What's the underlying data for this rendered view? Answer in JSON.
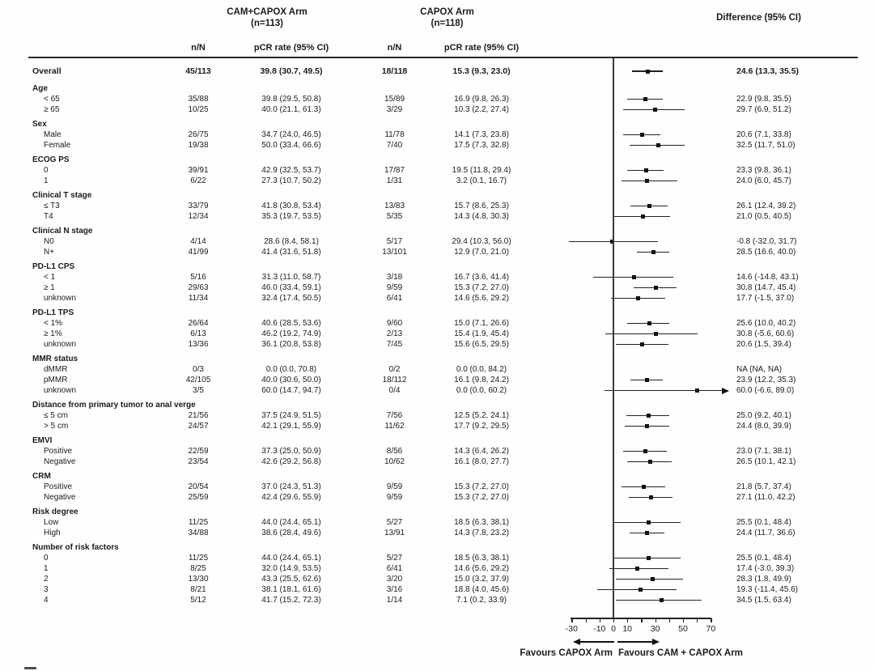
{
  "figure": {
    "arm1": {
      "name": "CAM+CAPOX Arm",
      "n_label": "(n=113)"
    },
    "arm2": {
      "name": "CAPOX Arm",
      "n_label": "(n=118)"
    },
    "col_nN": "n/N",
    "col_pcr": "pCR rate (95% CI)",
    "diff_header": "Difference (95% CI)",
    "favours_left": "Favours CAPOX Arm",
    "favours_right": "Favours CAM + CAPOX Arm"
  },
  "chart_data": {
    "type": "forest",
    "x_axis": {
      "range": [
        -30,
        70
      ],
      "tick_marks": [
        -30,
        -20,
        -10,
        0,
        10,
        20,
        30,
        40,
        50,
        60,
        70
      ],
      "labeled_ticks": [
        -30,
        -10,
        0,
        10,
        30,
        50,
        70
      ],
      "tick_labels": [
        "-30",
        "-10",
        "0",
        "10",
        "30",
        "50",
        "70"
      ],
      "zero_reference_line": 0
    },
    "rows": [
      {
        "kind": "overall",
        "label": "Overall",
        "n1": "45/113",
        "pcr1": "39.8 (30.7, 49.5)",
        "n2": "18/118",
        "pcr2": "15.3 (9.3, 23.0)",
        "diff": "24.6 (13.3, 35.5)",
        "est": 24.6,
        "lo": 13.3,
        "hi": 35.5
      },
      {
        "kind": "group",
        "label": "Age"
      },
      {
        "kind": "item",
        "label": "< 65",
        "n1": "35/88",
        "pcr1": "39.8 (29.5, 50.8)",
        "n2": "15/89",
        "pcr2": "16.9 (9.8, 26.3)",
        "diff": "22.9 (9.8, 35.5)",
        "est": 22.9,
        "lo": 9.8,
        "hi": 35.5
      },
      {
        "kind": "item",
        "label": "≥ 65",
        "n1": "10/25",
        "pcr1": "40.0 (21.1, 61.3)",
        "n2": "3/29",
        "pcr2": "10.3 (2.2, 27.4)",
        "diff": "29.7 (6.9, 51.2)",
        "est": 29.7,
        "lo": 6.9,
        "hi": 51.2
      },
      {
        "kind": "group",
        "label": "Sex"
      },
      {
        "kind": "item",
        "label": "Male",
        "n1": "26/75",
        "pcr1": "34.7 (24.0, 46.5)",
        "n2": "11/78",
        "pcr2": "14.1 (7.3, 23.8)",
        "diff": "20.6 (7.1, 33.8)",
        "est": 20.6,
        "lo": 7.1,
        "hi": 33.8
      },
      {
        "kind": "item",
        "label": "Female",
        "n1": "19/38",
        "pcr1": "50.0 (33.4, 66.6)",
        "n2": "7/40",
        "pcr2": "17.5 (7.3, 32.8)",
        "diff": "32.5 (11.7, 51.0)",
        "est": 32.5,
        "lo": 11.7,
        "hi": 51.0
      },
      {
        "kind": "group",
        "label": "ECOG PS"
      },
      {
        "kind": "item",
        "label": "0",
        "n1": "39/91",
        "pcr1": "42.9 (32.5, 53.7)",
        "n2": "17/87",
        "pcr2": "19.5 (11.8, 29.4)",
        "diff": "23.3 (9.8, 36.1)",
        "est": 23.3,
        "lo": 9.8,
        "hi": 36.1
      },
      {
        "kind": "item",
        "label": "1",
        "n1": "6/22",
        "pcr1": "27.3 (10.7, 50.2)",
        "n2": "1/31",
        "pcr2": "3.2 (0.1, 16.7)",
        "diff": "24.0 (6.0, 45.7)",
        "est": 24.0,
        "lo": 6.0,
        "hi": 45.7
      },
      {
        "kind": "group",
        "label": "Clinical T stage"
      },
      {
        "kind": "item",
        "label": "≤ T3",
        "n1": "33/79",
        "pcr1": "41.8 (30.8, 53.4)",
        "n2": "13/83",
        "pcr2": "15.7 (8.6, 25.3)",
        "diff": "26.1 (12.4, 39.2)",
        "est": 26.1,
        "lo": 12.4,
        "hi": 39.2
      },
      {
        "kind": "item",
        "label": "T4",
        "n1": "12/34",
        "pcr1": "35.3 (19.7, 53.5)",
        "n2": "5/35",
        "pcr2": "14.3 (4.8, 30.3)",
        "diff": "21.0 (0.5, 40.5)",
        "est": 21.0,
        "lo": 0.5,
        "hi": 40.5
      },
      {
        "kind": "group",
        "label": "Clinical N stage"
      },
      {
        "kind": "item",
        "label": "N0",
        "n1": "4/14",
        "pcr1": "28.6 (8.4, 58.1)",
        "n2": "5/17",
        "pcr2": "29.4 (10.3, 56.0)",
        "diff": "-0.8 (-32.0, 31.7)",
        "est": -0.8,
        "lo": -32.0,
        "hi": 31.7
      },
      {
        "kind": "item",
        "label": "N+",
        "n1": "41/99",
        "pcr1": "41.4 (31.6, 51.8)",
        "n2": "13/101",
        "pcr2": "12.9 (7.0, 21.0)",
        "diff": "28.5 (16.6, 40.0)",
        "est": 28.5,
        "lo": 16.6,
        "hi": 40.0
      },
      {
        "kind": "group",
        "label": "PD-L1 CPS"
      },
      {
        "kind": "item",
        "label": "< 1",
        "n1": "5/16",
        "pcr1": "31.3 (11.0, 58.7)",
        "n2": "3/18",
        "pcr2": "16.7 (3.6, 41.4)",
        "diff": "14.6 (-14.8, 43.1)",
        "est": 14.6,
        "lo": -14.8,
        "hi": 43.1
      },
      {
        "kind": "item",
        "label": "≥ 1",
        "n1": "29/63",
        "pcr1": "46.0 (33.4, 59.1)",
        "n2": "9/59",
        "pcr2": "15.3 (7.2, 27.0)",
        "diff": "30.8 (14.7, 45.4)",
        "est": 30.8,
        "lo": 14.7,
        "hi": 45.4
      },
      {
        "kind": "item",
        "label": "unknown",
        "n1": "11/34",
        "pcr1": "32.4 (17.4, 50.5)",
        "n2": "6/41",
        "pcr2": "14.6 (5.6, 29.2)",
        "diff": "17.7 (-1.5, 37.0)",
        "est": 17.7,
        "lo": -1.5,
        "hi": 37.0
      },
      {
        "kind": "group",
        "label": "PD-L1 TPS"
      },
      {
        "kind": "item",
        "label": "< 1%",
        "n1": "26/64",
        "pcr1": "40.6 (28.5, 53.6)",
        "n2": "9/60",
        "pcr2": "15.0 (7.1, 26.6)",
        "diff": "25.6 (10.0, 40.2)",
        "est": 25.6,
        "lo": 10.0,
        "hi": 40.2
      },
      {
        "kind": "item",
        "label": "≥ 1%",
        "n1": "6/13",
        "pcr1": "46.2 (19.2, 74.9)",
        "n2": "2/13",
        "pcr2": "15.4 (1.9, 45.4)",
        "diff": "30.8 (-5.6, 60.6)",
        "est": 30.8,
        "lo": -5.6,
        "hi": 60.6
      },
      {
        "kind": "item",
        "label": "unknown",
        "n1": "13/36",
        "pcr1": "36.1 (20.8, 53.8)",
        "n2": "7/45",
        "pcr2": "15.6 (6.5, 29.5)",
        "diff": "20.6 (1.5, 39.4)",
        "est": 20.6,
        "lo": 1.5,
        "hi": 39.4
      },
      {
        "kind": "group",
        "label": "MMR status"
      },
      {
        "kind": "item",
        "label": "dMMR",
        "n1": "0/3",
        "pcr1": "0.0 (0.0, 70.8)",
        "n2": "0/2",
        "pcr2": "0.0 (0.0, 84.2)",
        "diff": "NA (NA, NA)",
        "est": null,
        "lo": null,
        "hi": null
      },
      {
        "kind": "item",
        "label": "pMMR",
        "n1": "42/105",
        "pcr1": "40.0 (30.6, 50.0)",
        "n2": "18/112",
        "pcr2": "16.1 (9.8, 24.2)",
        "diff": "23.9 (12.2, 35.3)",
        "est": 23.9,
        "lo": 12.2,
        "hi": 35.3
      },
      {
        "kind": "item",
        "label": "unknown",
        "n1": "3/5",
        "pcr1": "60.0 (14.7, 94.7)",
        "n2": "0/4",
        "pcr2": "0.0 (0.0, 60.2)",
        "diff": "60.0 (-6.6, 89.0)",
        "est": 60.0,
        "lo": -6.6,
        "hi": 89.0,
        "clip_hi_arrow": true
      },
      {
        "kind": "group",
        "label": "Distance from primary tumor to anal verge"
      },
      {
        "kind": "item",
        "label": "≤ 5 cm",
        "n1": "21/56",
        "pcr1": "37.5 (24.9, 51.5)",
        "n2": "7/56",
        "pcr2": "12.5 (5.2, 24.1)",
        "diff": "25.0 (9.2, 40.1)",
        "est": 25.0,
        "lo": 9.2,
        "hi": 40.1
      },
      {
        "kind": "item",
        "label": "> 5 cm",
        "n1": "24/57",
        "pcr1": "42.1 (29.1, 55.9)",
        "n2": "11/62",
        "pcr2": "17.7 (9.2, 29.5)",
        "diff": "24.4 (8.0, 39.9)",
        "est": 24.4,
        "lo": 8.0,
        "hi": 39.9
      },
      {
        "kind": "group",
        "label": "EMVI"
      },
      {
        "kind": "item",
        "label": "Positive",
        "n1": "22/59",
        "pcr1": "37.3 (25.0, 50.9)",
        "n2": "8/56",
        "pcr2": "14.3 (6.4, 26.2)",
        "diff": "23.0 (7.1, 38.1)",
        "est": 23.0,
        "lo": 7.1,
        "hi": 38.1
      },
      {
        "kind": "item",
        "label": "Negative",
        "n1": "23/54",
        "pcr1": "42.6 (29.2, 56.8)",
        "n2": "10/62",
        "pcr2": "16.1 (8.0, 27.7)",
        "diff": "26.5 (10.1, 42.1)",
        "est": 26.5,
        "lo": 10.1,
        "hi": 42.1
      },
      {
        "kind": "group",
        "label": "CRM"
      },
      {
        "kind": "item",
        "label": "Positive",
        "n1": "20/54",
        "pcr1": "37.0 (24.3, 51.3)",
        "n2": "9/59",
        "pcr2": "15.3 (7.2, 27.0)",
        "diff": "21.8 (5.7, 37.4)",
        "est": 21.8,
        "lo": 5.7,
        "hi": 37.4
      },
      {
        "kind": "item",
        "label": "Negative",
        "n1": "25/59",
        "pcr1": "42.4 (29.6, 55.9)",
        "n2": "9/59",
        "pcr2": "15.3 (7.2, 27.0)",
        "diff": "27.1 (11.0, 42.2)",
        "est": 27.1,
        "lo": 11.0,
        "hi": 42.2
      },
      {
        "kind": "group",
        "label": "Risk degree"
      },
      {
        "kind": "item",
        "label": "Low",
        "n1": "11/25",
        "pcr1": "44.0 (24.4, 65.1)",
        "n2": "5/27",
        "pcr2": "18.5 (6.3, 38.1)",
        "diff": "25.5 (0.1, 48.4)",
        "est": 25.5,
        "lo": 0.1,
        "hi": 48.4
      },
      {
        "kind": "item",
        "label": "High",
        "n1": "34/88",
        "pcr1": "38.6 (28.4, 49.6)",
        "n2": "13/91",
        "pcr2": "14.3 (7.8, 23.2)",
        "diff": "24.4 (11.7, 36.6)",
        "est": 24.4,
        "lo": 11.7,
        "hi": 36.6
      },
      {
        "kind": "group",
        "label": "Number of risk factors"
      },
      {
        "kind": "item",
        "label": "0",
        "n1": "11/25",
        "pcr1": "44.0 (24.4, 65.1)",
        "n2": "5/27",
        "pcr2": "18.5 (6.3, 38.1)",
        "diff": "25.5 (0.1, 48.4)",
        "est": 25.5,
        "lo": 0.1,
        "hi": 48.4
      },
      {
        "kind": "item",
        "label": "1",
        "n1": "8/25",
        "pcr1": "32.0 (14.9, 53.5)",
        "n2": "6/41",
        "pcr2": "14.6 (5.6, 29.2)",
        "diff": "17.4 (-3.0, 39.3)",
        "est": 17.4,
        "lo": -3.0,
        "hi": 39.3
      },
      {
        "kind": "item",
        "label": "2",
        "n1": "13/30",
        "pcr1": "43.3 (25.5, 62.6)",
        "n2": "3/20",
        "pcr2": "15.0 (3.2, 37.9)",
        "diff": "28.3 (1.8, 49.9)",
        "est": 28.3,
        "lo": 1.8,
        "hi": 49.9
      },
      {
        "kind": "item",
        "label": "3",
        "n1": "8/21",
        "pcr1": "38.1 (18.1, 61.6)",
        "n2": "3/16",
        "pcr2": "18.8 (4.0, 45.6)",
        "diff": "19.3 (-11.4, 45.6)",
        "est": 19.3,
        "lo": -11.4,
        "hi": 45.6
      },
      {
        "kind": "item",
        "label": "4",
        "n1": "5/12",
        "pcr1": "41.7 (15.2, 72.3)",
        "n2": "1/14",
        "pcr2": "7.1 (0.2, 33.9)",
        "diff": "34.5 (1.5, 63.4)",
        "est": 34.5,
        "lo": 1.5,
        "hi": 63.4
      }
    ]
  }
}
